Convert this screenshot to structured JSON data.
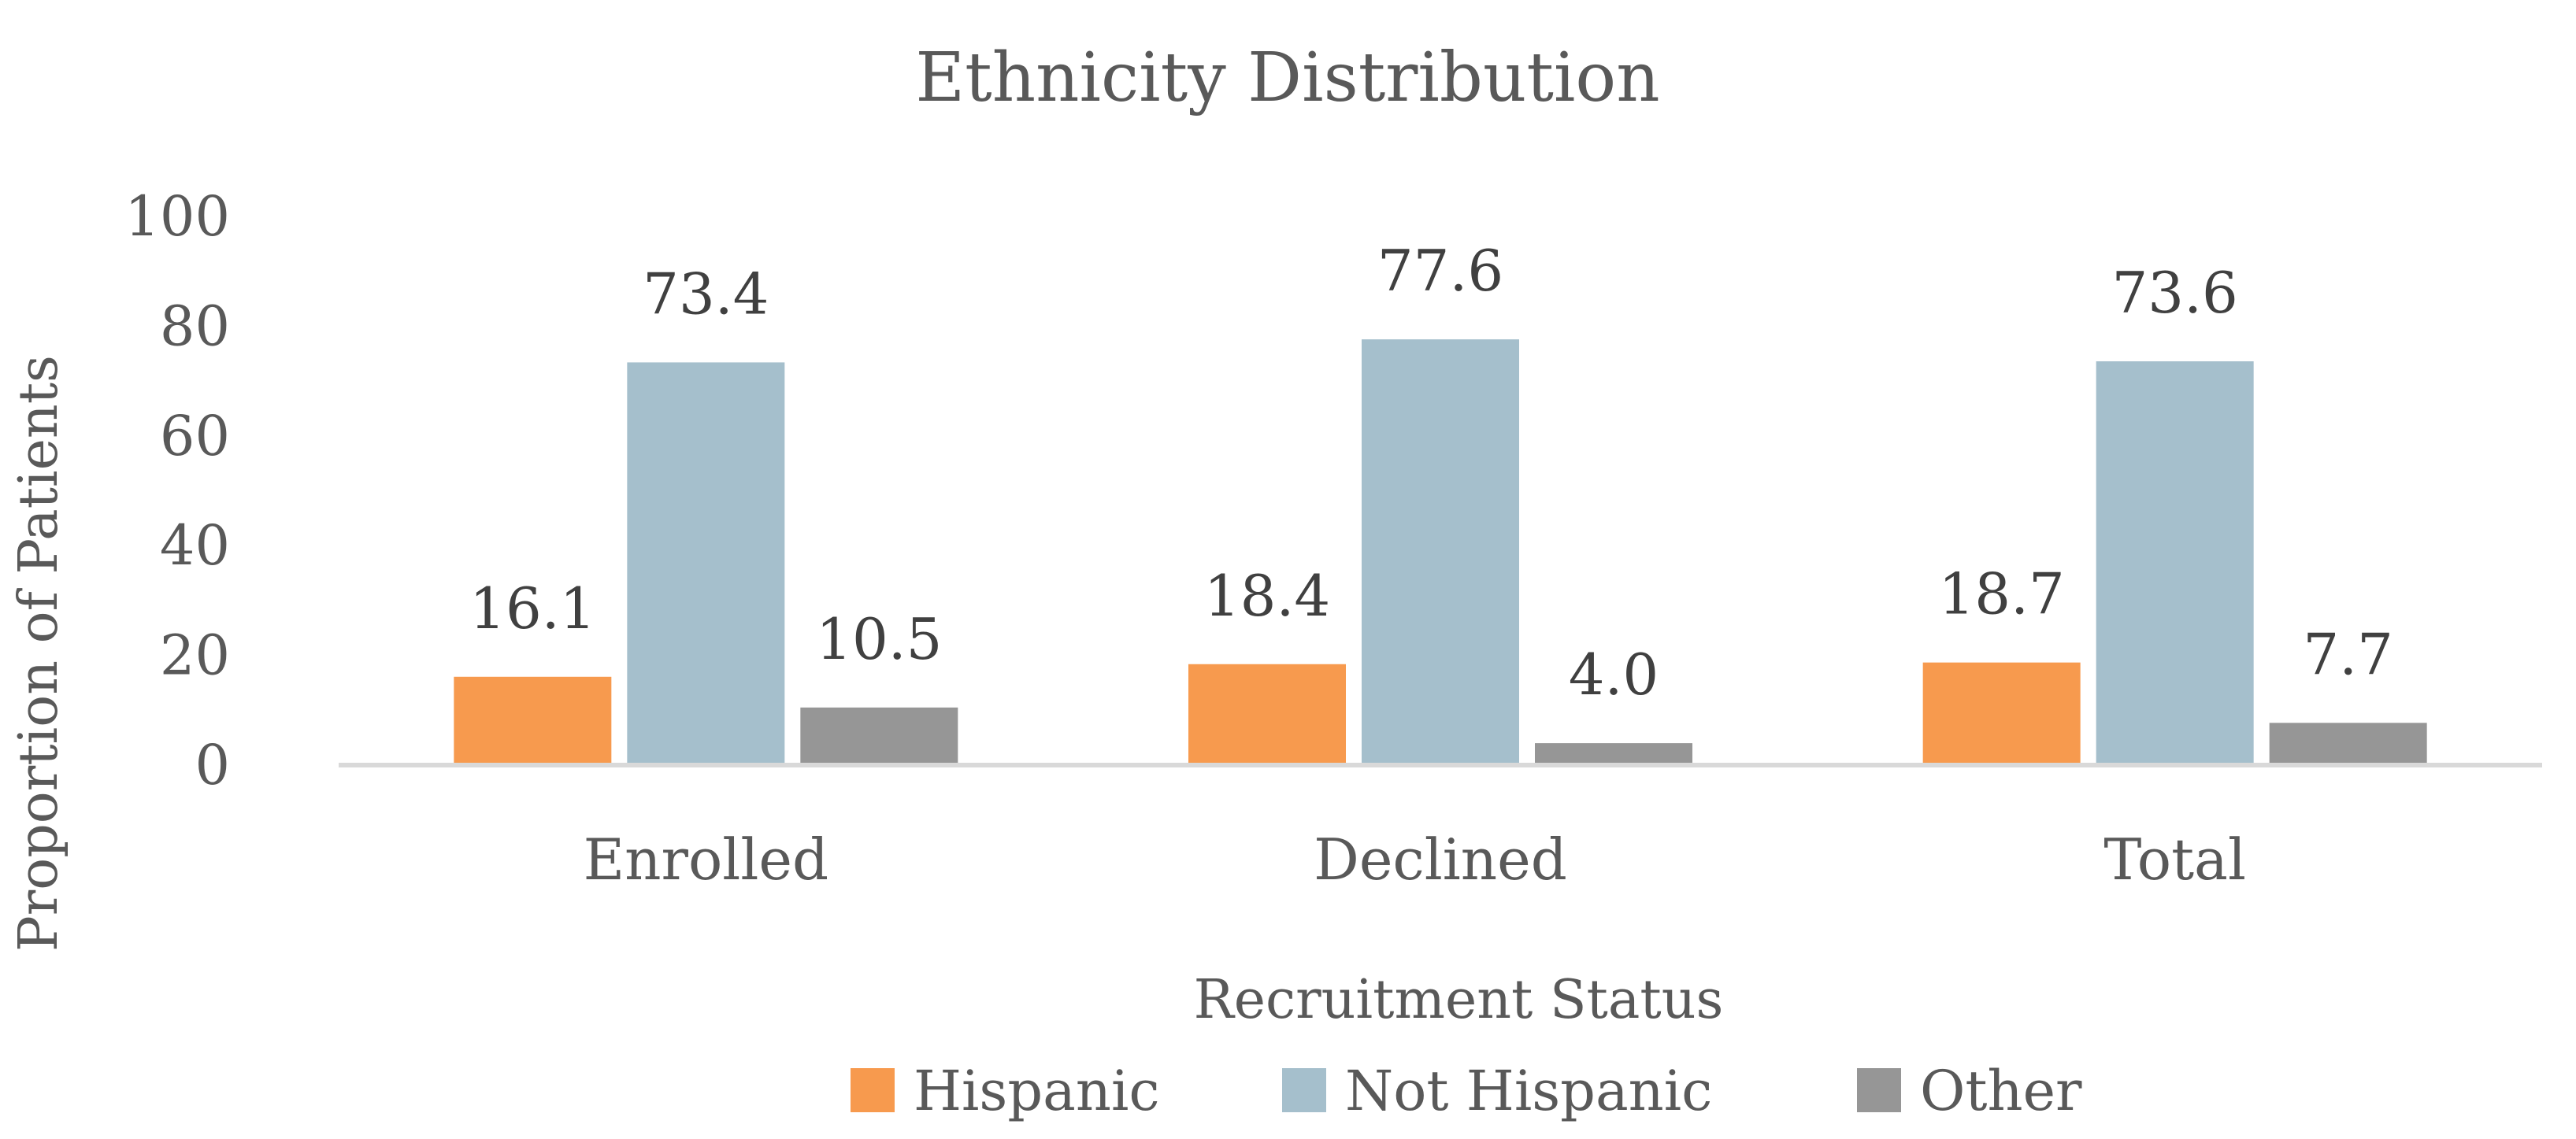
{
  "chart_data": {
    "type": "bar",
    "title": "Ethnicity Distribution",
    "xlabel": "Recruitment Status",
    "ylabel": "Proportion of Patients",
    "categories": [
      "Enrolled",
      "Declined",
      "Total"
    ],
    "series": [
      {
        "name": "Hispanic",
        "color": "#F79A4E",
        "values": [
          16.1,
          18.4,
          18.7
        ],
        "labels": [
          "16.1",
          "18.4",
          "18.7"
        ]
      },
      {
        "name": "Not Hispanic",
        "color": "#A5BFCC",
        "values": [
          73.4,
          77.6,
          73.6
        ],
        "labels": [
          "73.4",
          "77.6",
          "73.6"
        ]
      },
      {
        "name": "Other",
        "color": "#969696",
        "values": [
          10.5,
          4.0,
          7.7
        ],
        "labels": [
          "10.5",
          "4.0",
          "7.7"
        ]
      }
    ],
    "ylim": [
      0,
      100
    ],
    "yticks": [
      "0",
      "20",
      "40",
      "60",
      "80",
      "100"
    ],
    "grid": false,
    "legend_position": "bottom"
  }
}
